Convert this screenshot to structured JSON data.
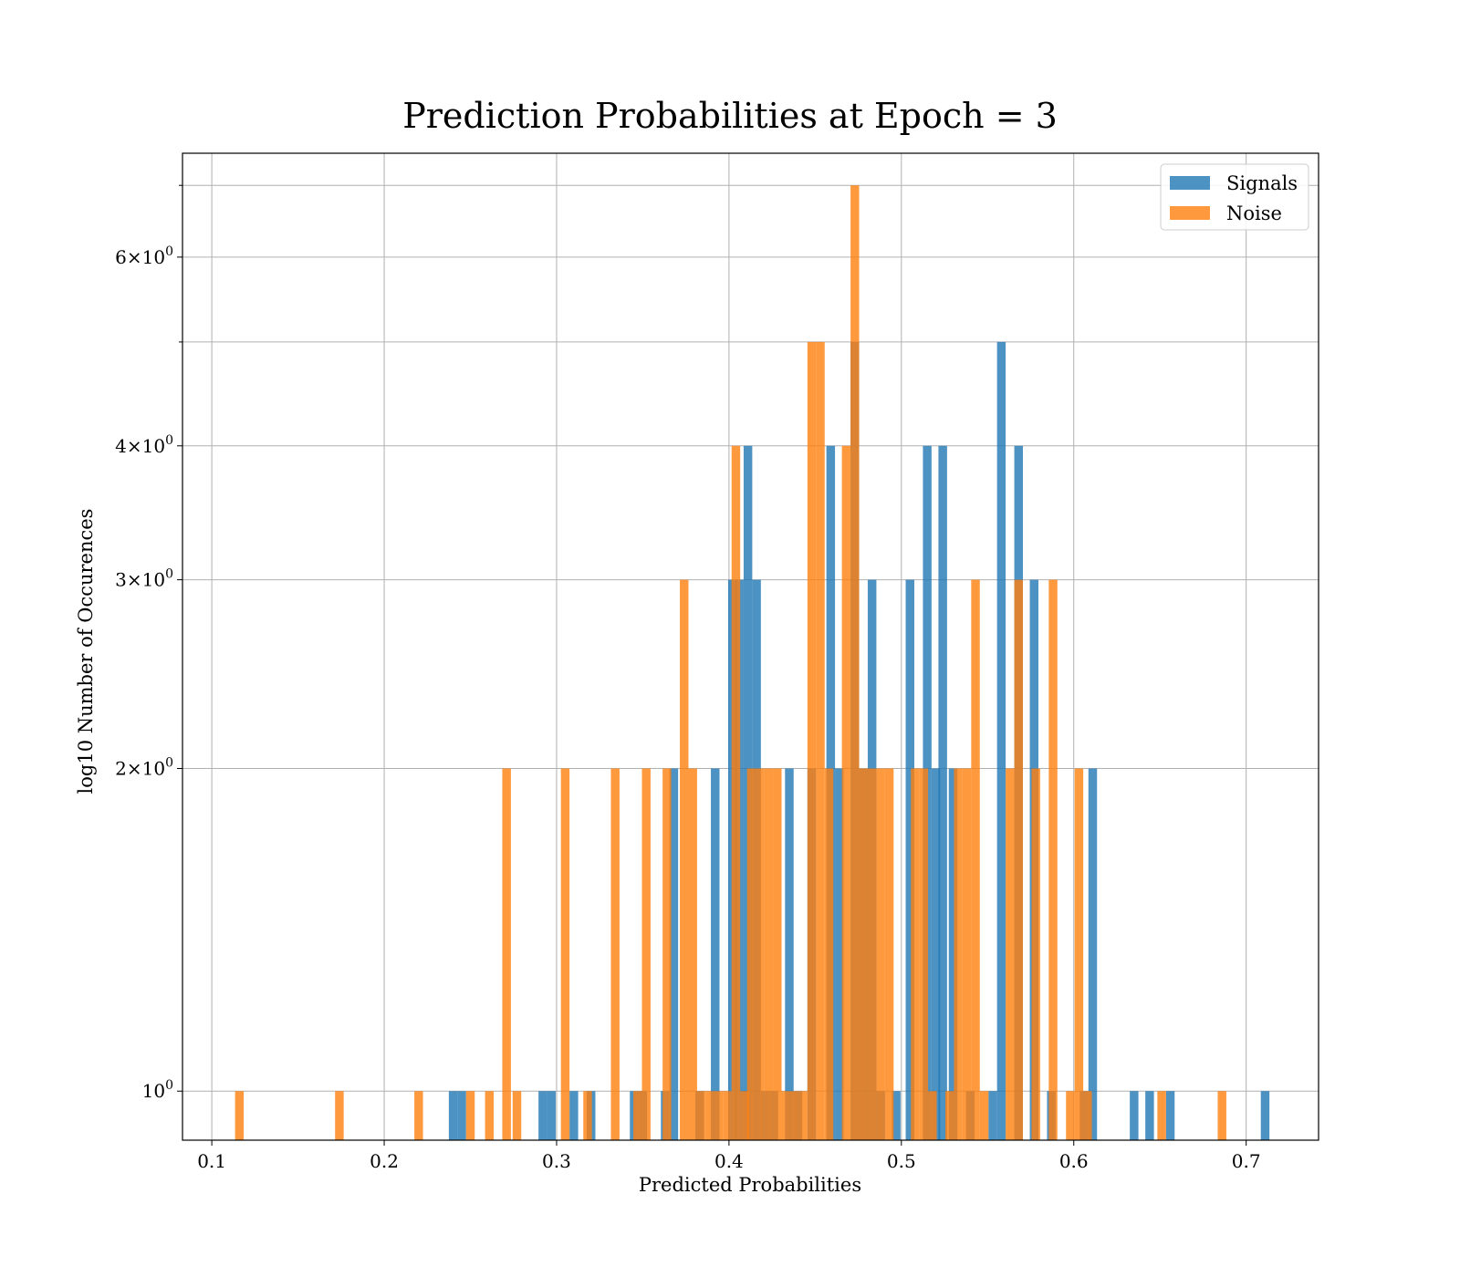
{
  "chart_data": {
    "type": "bar",
    "title": "Prediction Probabilities at Epoch = 3",
    "xlabel": "Predicted Probabilities",
    "ylabel": "log10 Number of Occurences",
    "xlim": [
      0.083,
      0.742
    ],
    "ylim": [
      0.9,
      7.5
    ],
    "yscale": "log",
    "grid": true,
    "legend_position": "top-right",
    "bin_width": 0.005,
    "x_ticks": [
      {
        "value": 0.1,
        "label": "0.1"
      },
      {
        "value": 0.2,
        "label": "0.2"
      },
      {
        "value": 0.3,
        "label": "0.3"
      },
      {
        "value": 0.4,
        "label": "0.4"
      },
      {
        "value": 0.5,
        "label": "0.5"
      },
      {
        "value": 0.6,
        "label": "0.6"
      },
      {
        "value": 0.7,
        "label": "0.7"
      }
    ],
    "y_ticks": [
      {
        "value": 1,
        "label": "10",
        "exp": "0"
      },
      {
        "value": 2,
        "label": "2×10",
        "exp": "0"
      },
      {
        "value": 3,
        "label": "3×10",
        "exp": "0"
      },
      {
        "value": 4,
        "label": "4×10",
        "exp": "0"
      },
      {
        "value": 6,
        "label": "6×10",
        "exp": "0"
      }
    ],
    "y_minor_ticks": [
      5,
      7
    ],
    "series": [
      {
        "name": "Signals",
        "color": "#1f77b4",
        "opacity": 0.8,
        "bins": [
          {
            "x": 0.24,
            "y": 1
          },
          {
            "x": 0.245,
            "y": 1
          },
          {
            "x": 0.292,
            "y": 1
          },
          {
            "x": 0.297,
            "y": 1
          },
          {
            "x": 0.31,
            "y": 1
          },
          {
            "x": 0.32,
            "y": 1
          },
          {
            "x": 0.345,
            "y": 1
          },
          {
            "x": 0.35,
            "y": 1
          },
          {
            "x": 0.363,
            "y": 1
          },
          {
            "x": 0.368,
            "y": 2
          },
          {
            "x": 0.383,
            "y": 1
          },
          {
            "x": 0.392,
            "y": 2
          },
          {
            "x": 0.402,
            "y": 3
          },
          {
            "x": 0.406,
            "y": 3
          },
          {
            "x": 0.411,
            "y": 4
          },
          {
            "x": 0.416,
            "y": 3
          },
          {
            "x": 0.421,
            "y": 1
          },
          {
            "x": 0.426,
            "y": 1
          },
          {
            "x": 0.435,
            "y": 2
          },
          {
            "x": 0.44,
            "y": 1
          },
          {
            "x": 0.448,
            "y": 2
          },
          {
            "x": 0.459,
            "y": 4
          },
          {
            "x": 0.464,
            "y": 2
          },
          {
            "x": 0.473,
            "y": 5
          },
          {
            "x": 0.478,
            "y": 2
          },
          {
            "x": 0.483,
            "y": 3
          },
          {
            "x": 0.488,
            "y": 1
          },
          {
            "x": 0.497,
            "y": 1
          },
          {
            "x": 0.505,
            "y": 3
          },
          {
            "x": 0.515,
            "y": 4
          },
          {
            "x": 0.52,
            "y": 2
          },
          {
            "x": 0.524,
            "y": 4
          },
          {
            "x": 0.53,
            "y": 2
          },
          {
            "x": 0.54,
            "y": 1
          },
          {
            "x": 0.553,
            "y": 1
          },
          {
            "x": 0.558,
            "y": 5
          },
          {
            "x": 0.568,
            "y": 4
          },
          {
            "x": 0.577,
            "y": 3
          },
          {
            "x": 0.587,
            "y": 1
          },
          {
            "x": 0.606,
            "y": 1
          },
          {
            "x": 0.611,
            "y": 2
          },
          {
            "x": 0.635,
            "y": 1
          },
          {
            "x": 0.644,
            "y": 1
          },
          {
            "x": 0.656,
            "y": 1
          },
          {
            "x": 0.711,
            "y": 1
          }
        ]
      },
      {
        "name": "Noise",
        "color": "#ff7f0e",
        "opacity": 0.8,
        "bins": [
          {
            "x": 0.116,
            "y": 1
          },
          {
            "x": 0.174,
            "y": 1
          },
          {
            "x": 0.22,
            "y": 1
          },
          {
            "x": 0.25,
            "y": 1
          },
          {
            "x": 0.261,
            "y": 1
          },
          {
            "x": 0.271,
            "y": 2
          },
          {
            "x": 0.277,
            "y": 1
          },
          {
            "x": 0.305,
            "y": 2
          },
          {
            "x": 0.318,
            "y": 1
          },
          {
            "x": 0.334,
            "y": 2
          },
          {
            "x": 0.347,
            "y": 1
          },
          {
            "x": 0.352,
            "y": 2
          },
          {
            "x": 0.364,
            "y": 2
          },
          {
            "x": 0.374,
            "y": 3
          },
          {
            "x": 0.379,
            "y": 2
          },
          {
            "x": 0.384,
            "y": 1
          },
          {
            "x": 0.389,
            "y": 1
          },
          {
            "x": 0.394,
            "y": 1
          },
          {
            "x": 0.399,
            "y": 1
          },
          {
            "x": 0.404,
            "y": 4
          },
          {
            "x": 0.409,
            "y": 1
          },
          {
            "x": 0.413,
            "y": 2
          },
          {
            "x": 0.418,
            "y": 2
          },
          {
            "x": 0.423,
            "y": 2
          },
          {
            "x": 0.428,
            "y": 2
          },
          {
            "x": 0.433,
            "y": 1
          },
          {
            "x": 0.438,
            "y": 1
          },
          {
            "x": 0.443,
            "y": 1
          },
          {
            "x": 0.448,
            "y": 5
          },
          {
            "x": 0.453,
            "y": 5
          },
          {
            "x": 0.458,
            "y": 2
          },
          {
            "x": 0.468,
            "y": 4
          },
          {
            "x": 0.473,
            "y": 7
          },
          {
            "x": 0.478,
            "y": 2
          },
          {
            "x": 0.483,
            "y": 2
          },
          {
            "x": 0.488,
            "y": 2
          },
          {
            "x": 0.493,
            "y": 2
          },
          {
            "x": 0.508,
            "y": 2
          },
          {
            "x": 0.513,
            "y": 2
          },
          {
            "x": 0.518,
            "y": 1
          },
          {
            "x": 0.528,
            "y": 1
          },
          {
            "x": 0.533,
            "y": 2
          },
          {
            "x": 0.538,
            "y": 2
          },
          {
            "x": 0.543,
            "y": 3
          },
          {
            "x": 0.548,
            "y": 1
          },
          {
            "x": 0.563,
            "y": 2
          },
          {
            "x": 0.568,
            "y": 3
          },
          {
            "x": 0.578,
            "y": 2
          },
          {
            "x": 0.588,
            "y": 3
          },
          {
            "x": 0.598,
            "y": 1
          },
          {
            "x": 0.603,
            "y": 2
          },
          {
            "x": 0.608,
            "y": 1
          },
          {
            "x": 0.651,
            "y": 1
          },
          {
            "x": 0.686,
            "y": 1
          }
        ]
      }
    ]
  }
}
